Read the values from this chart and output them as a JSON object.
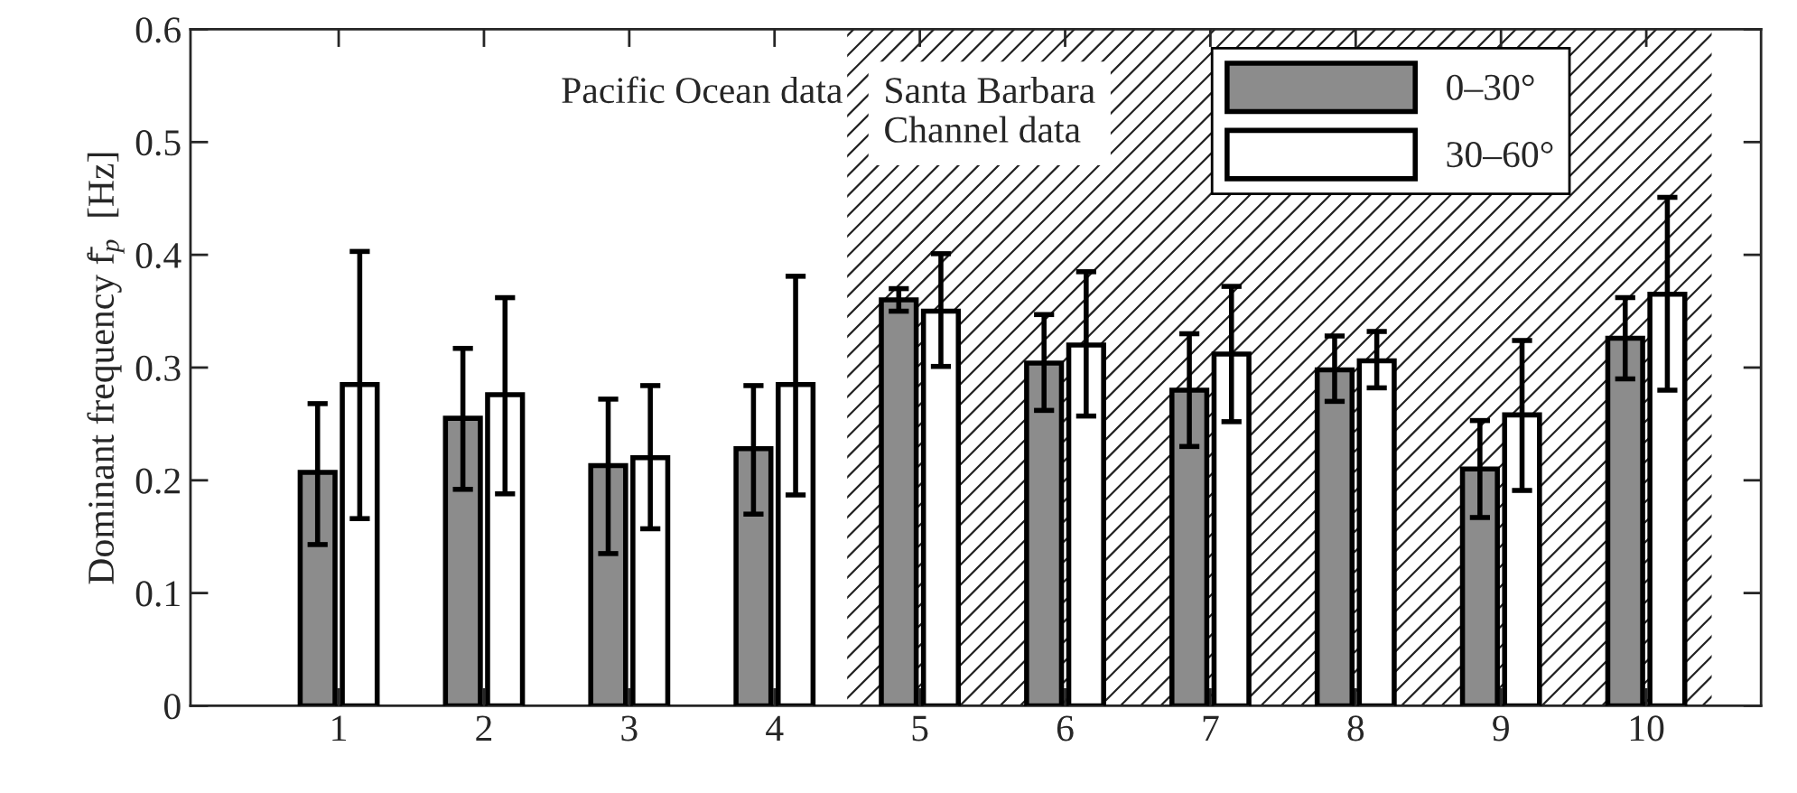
{
  "chart_data": {
    "type": "bar",
    "ylabel": "Dominant frequency f̄$_{p}$  [Hz]",
    "categories": [
      "1",
      "2",
      "3",
      "4",
      "5",
      "6",
      "7",
      "8",
      "9",
      "10"
    ],
    "series": [
      {
        "name": "0–30°",
        "color": "#8c8c8c",
        "values": [
          0.207,
          0.255,
          0.213,
          0.228,
          0.36,
          0.304,
          0.28,
          0.298,
          0.21,
          0.326
        ],
        "errors": [
          [
            0.143,
            0.268
          ],
          [
            0.192,
            0.317
          ],
          [
            0.135,
            0.272
          ],
          [
            0.17,
            0.284
          ],
          [
            0.35,
            0.37
          ],
          [
            0.262,
            0.347
          ],
          [
            0.23,
            0.33
          ],
          [
            0.27,
            0.328
          ],
          [
            0.167,
            0.253
          ],
          [
            0.29,
            0.362
          ]
        ]
      },
      {
        "name": "30–60°",
        "color": "#ffffff",
        "values": [
          0.285,
          0.276,
          0.22,
          0.285,
          0.35,
          0.32,
          0.312,
          0.306,
          0.258,
          0.365
        ],
        "errors": [
          [
            0.166,
            0.403
          ],
          [
            0.188,
            0.362
          ],
          [
            0.157,
            0.284
          ],
          [
            0.187,
            0.381
          ],
          [
            0.301,
            0.401
          ],
          [
            0.257,
            0.385
          ],
          [
            0.252,
            0.372
          ],
          [
            0.282,
            0.332
          ],
          [
            0.191,
            0.324
          ],
          [
            0.28,
            0.451
          ]
        ]
      }
    ],
    "ylim": [
      0,
      0.6
    ],
    "yticks": [
      0,
      0.1,
      0.2,
      0.3,
      0.4,
      0.5,
      0.6
    ],
    "bands": [
      {
        "axis": "x",
        "from": "5",
        "to": "10",
        "label": "Santa Barbara\nChannel data"
      }
    ],
    "annotations": [
      "Pacific Ocean data"
    ],
    "legend": "top right",
    "grid": false
  }
}
